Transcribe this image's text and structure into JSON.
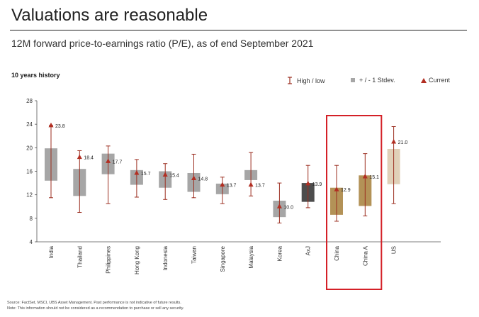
{
  "header": {
    "title": "Valuations are reasonable",
    "subtitle": "12M forward price-to-earnings ratio (P/E), as of end September 2021",
    "section_label": "10 years history"
  },
  "legend": {
    "high_low": "High / low",
    "stdev": "+ / - 1 Stdev.",
    "current": "Current"
  },
  "colors": {
    "whisker": "#9b2d1f",
    "current": "#b22e22",
    "box_default": "#a6a6a6",
    "box_axj": "#4d4d4d",
    "box_china": "#b39257",
    "box_us": "#e0d0b8",
    "highlight": "#d42027"
  },
  "chart_data": {
    "type": "box",
    "title": "",
    "ylim": [
      4,
      28
    ],
    "yticks": [
      4,
      8,
      12,
      16,
      20,
      24,
      28
    ],
    "grid": false,
    "categories": [
      "India",
      "Thailand",
      "Philippines",
      "Hong Kong",
      "Indonesia",
      "Taiwan",
      "Singapore",
      "Malaysia",
      "Korea",
      "AxJ",
      "China",
      "China A",
      "US"
    ],
    "high": [
      23.8,
      19.5,
      20.3,
      18.0,
      17.3,
      18.9,
      15.0,
      19.2,
      14.0,
      17.0,
      17.0,
      19.0,
      23.6
    ],
    "low": [
      11.5,
      9.0,
      10.5,
      11.6,
      11.2,
      11.5,
      10.5,
      11.8,
      7.2,
      9.8,
      7.5,
      8.4,
      10.5
    ],
    "stdev_upper": [
      19.9,
      16.4,
      19.0,
      16.2,
      16.0,
      15.7,
      13.9,
      16.2,
      11.0,
      14.0,
      13.2,
      15.3,
      19.8
    ],
    "stdev_lower": [
      14.4,
      11.8,
      15.5,
      13.7,
      13.2,
      12.5,
      12.1,
      14.5,
      8.2,
      10.8,
      8.6,
      10.1,
      13.8
    ],
    "current": [
      23.8,
      18.4,
      17.7,
      15.7,
      15.4,
      14.8,
      13.7,
      13.7,
      10.0,
      13.9,
      12.9,
      15.1,
      21.0
    ],
    "current_labels": [
      "23.8",
      "18.4",
      "17.7",
      "15.7",
      "15.4",
      "14.8",
      "13.7",
      "13.7",
      "10.0",
      "13.9",
      "12.9",
      "15.1",
      "21.0"
    ],
    "highlighted": [
      "China",
      "China A"
    ]
  },
  "footnotes": {
    "source": "Source: FactSet, MSCI, UBS Asset Management. Past performance is not indicative of future results.",
    "note": "Note: This information should not be considered as a recommendation to purchase or sell any security."
  }
}
